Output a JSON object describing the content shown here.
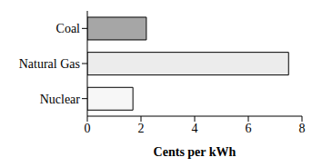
{
  "chart_data": {
    "type": "bar",
    "orientation": "horizontal",
    "categories": [
      "Coal",
      "Natural Gas",
      "Nuclear"
    ],
    "values": [
      2.2,
      7.5,
      1.7
    ],
    "colors": [
      "#a6a6a6",
      "#ececec",
      "#f7f7f7"
    ],
    "x_label": "Cents per kWh",
    "xlim": [
      0,
      8
    ],
    "xticks": [
      0,
      2,
      4,
      6,
      8
    ],
    "grid": false
  }
}
